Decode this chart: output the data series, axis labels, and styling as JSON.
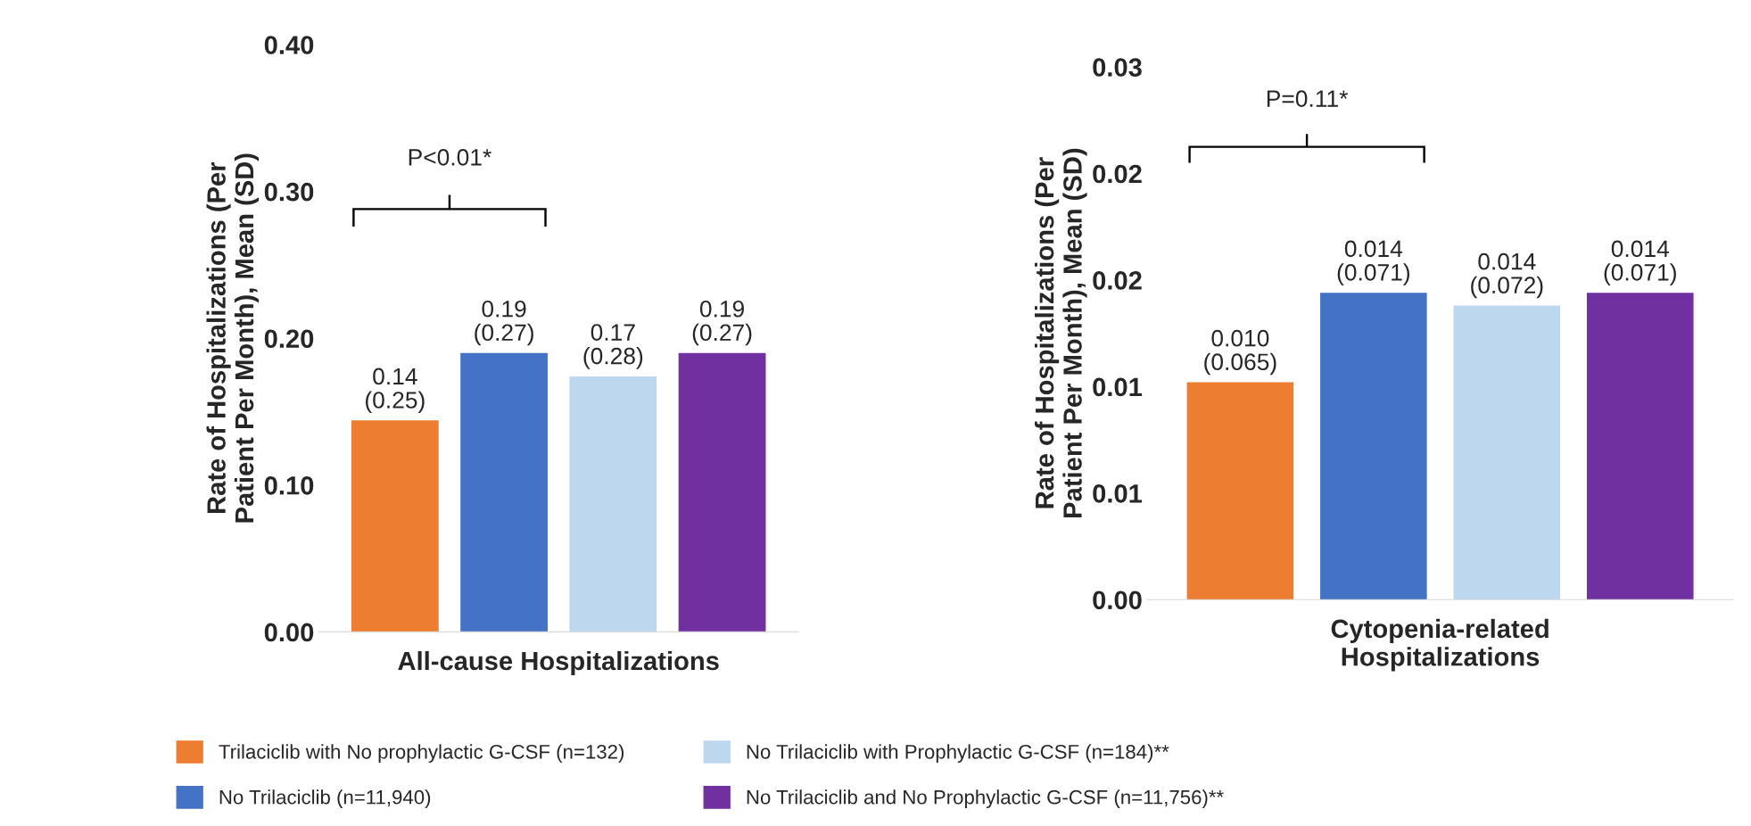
{
  "chart_data": [
    {
      "type": "bar",
      "categories": [
        null,
        null,
        null,
        null
      ],
      "xlabel": "All-cause Hospitalizations",
      "ylabel": "Rate of Hospitalizations (Per Patient Per Month), Mean (SD)",
      "ylim": [
        0,
        0.4
      ],
      "yticks": [
        {
          "value": 0,
          "label": "0.00"
        },
        {
          "value": 0.1,
          "label": "0.10"
        },
        {
          "value": 0.2,
          "label": "0.20"
        },
        {
          "value": 0.3,
          "label": "0.30"
        },
        {
          "value": 0.4,
          "label": "0.40"
        }
      ],
      "grid": false,
      "stacked": true,
      "legend": "bottom",
      "annotations": [
        "P<0.01*"
      ],
      "series": [
        {
          "name": "Trilaciclib with No prophylactic G-CSF (n=132)",
          "color": "#ed7d31",
          "values": [
            0.144,
            null,
            null,
            null
          ],
          "value_labels": [
            "0.14\n(0.25)",
            null,
            null,
            null
          ]
        },
        {
          "name": "No Trilaciclib (n=11,940)",
          "color": "#4472c4",
          "values": [
            null,
            0.19,
            null,
            null
          ],
          "value_labels": [
            null,
            "0.19\n(0.27)",
            null,
            null
          ]
        },
        {
          "name": "No Trilaciclib with Prophylactic G-CSF (n=184)**",
          "color": "#bdd7ee",
          "values": [
            null,
            null,
            0.174,
            null
          ],
          "value_labels": [
            null,
            null,
            "0.17\n(0.28)",
            null
          ]
        },
        {
          "name": "No Trilaciclib and No Prophylactic G-CSF (n=11,756)**",
          "color": "#7030a0",
          "values": [
            null,
            null,
            null,
            0.19
          ],
          "value_labels": [
            null,
            null,
            null,
            "0.19\n(0.27)"
          ]
        }
      ]
    },
    {
      "type": "bar",
      "categories": [
        null,
        null,
        null,
        null
      ],
      "xlabel": "Cytopenia-related\nHospitalizations",
      "ylabel": "Rate of Hospitalizations (Per Patient Per Month), Mean (SD)",
      "ylim": [
        0,
        0.025
      ],
      "yticks": [
        {
          "value": 0,
          "label": "0.00"
        },
        {
          "value": 0.005,
          "label": "0.01"
        },
        {
          "value": 0.01,
          "label": "0.01"
        },
        {
          "value": 0.015,
          "label": "0.02"
        },
        {
          "value": 0.02,
          "label": "0.02"
        },
        {
          "value": 0.025,
          "label": "0.03"
        }
      ],
      "grid": false,
      "stacked": true,
      "annotations": [
        "P=0.11*"
      ],
      "series": [
        {
          "color": "#ed7d31",
          "values": [
            0.0102,
            null,
            null,
            null
          ],
          "value_labels": [
            "0.010\n(0.065)",
            null,
            null,
            null
          ]
        },
        {
          "color": "#4472c4",
          "values": [
            null,
            0.0144,
            null,
            null
          ],
          "value_labels": [
            null,
            "0.014\n(0.071)",
            null,
            null
          ]
        },
        {
          "color": "#bdd7ee",
          "values": [
            null,
            null,
            0.0138,
            null
          ],
          "value_labels": [
            null,
            null,
            "0.014\n(0.072)",
            null
          ]
        },
        {
          "color": "#7030a0",
          "values": [
            null,
            null,
            null,
            0.0144
          ],
          "value_labels": [
            null,
            null,
            null,
            "0.014\n(0.071)"
          ]
        }
      ]
    }
  ]
}
